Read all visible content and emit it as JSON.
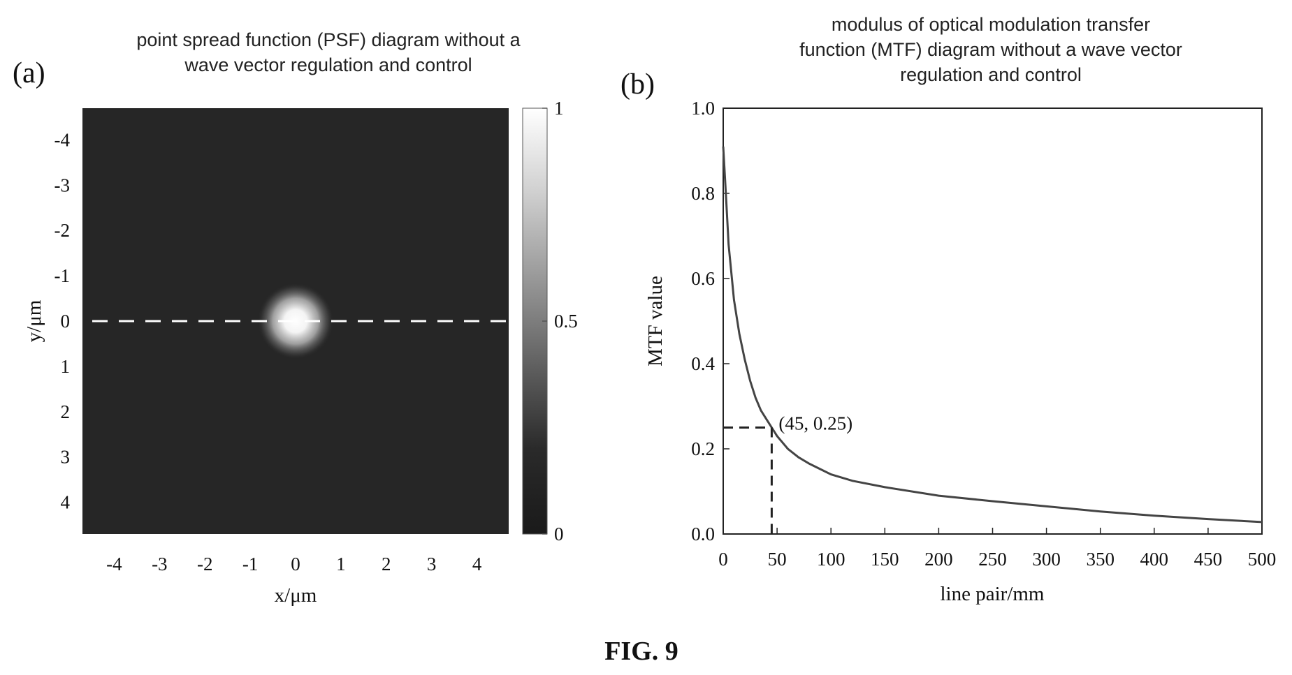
{
  "figure_caption": "FIG. 9",
  "chart_data": [
    {
      "type": "heatmap",
      "panel_label": "(a)",
      "title_lines": [
        "point spread function (PSF) diagram without a",
        "wave vector regulation and control"
      ],
      "xlabel": "x/μm",
      "ylabel": "y/μm",
      "x_ticks": [
        "-4",
        "-3",
        "-2",
        "-1",
        "0",
        "1",
        "2",
        "3",
        "4"
      ],
      "y_ticks": [
        "-4",
        "-3",
        "-2",
        "-1",
        "0",
        "1",
        "2",
        "3",
        "4"
      ],
      "xlim": [
        -4.7,
        4.7
      ],
      "ylim": [
        -4.7,
        4.7
      ],
      "y_axis_inverted": true,
      "colorscale": "gray",
      "colorbar_ticks": [
        "1",
        "0.5",
        "0"
      ],
      "colorbar_range": [
        0,
        1
      ],
      "spot": {
        "center_x": 0,
        "center_y": 0,
        "peak": 1,
        "radius": 0.8
      },
      "guide_line": {
        "style": "dashed",
        "color": "#ffffff",
        "y": 0
      }
    },
    {
      "type": "line",
      "panel_label": "(b)",
      "title_lines": [
        "modulus of optical modulation transfer",
        "function (MTF) diagram without a wave vector",
        "regulation and control"
      ],
      "xlabel": "line pair/mm",
      "ylabel": "MTF value",
      "xlim": [
        0,
        500
      ],
      "ylim": [
        0,
        1.0
      ],
      "x_ticks": [
        "0",
        "50",
        "100",
        "150",
        "200",
        "250",
        "300",
        "350",
        "400",
        "450",
        "500"
      ],
      "y_ticks": [
        "0.0",
        "0.2",
        "0.4",
        "0.6",
        "0.8",
        "1.0"
      ],
      "grid": false,
      "series": [
        {
          "x": [
            0,
            2,
            5,
            10,
            15,
            20,
            25,
            30,
            35,
            40,
            45,
            50,
            60,
            70,
            80,
            100,
            120,
            150,
            200,
            250,
            300,
            350,
            400,
            450,
            500
          ],
          "y": [
            0.91,
            0.82,
            0.68,
            0.55,
            0.47,
            0.41,
            0.36,
            0.32,
            0.29,
            0.27,
            0.25,
            0.23,
            0.2,
            0.18,
            0.165,
            0.14,
            0.125,
            0.11,
            0.09,
            0.077,
            0.065,
            0.053,
            0.043,
            0.035,
            0.028
          ]
        }
      ],
      "annotation": {
        "x": 45,
        "y": 0.25,
        "text": "(45, 0.25)"
      }
    }
  ]
}
